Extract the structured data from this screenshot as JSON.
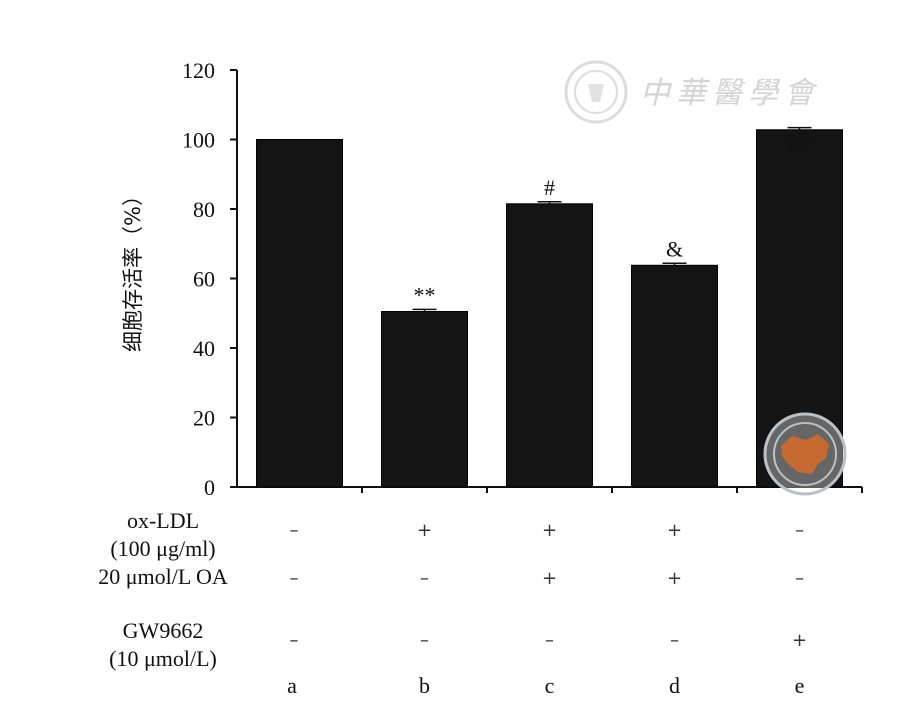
{
  "chart_data": {
    "type": "bar",
    "title": "",
    "xlabel": "",
    "ylabel": "细胞存活率（%）",
    "ylim": [
      0,
      120
    ],
    "yticks": [
      0,
      20,
      40,
      60,
      80,
      100,
      120
    ],
    "grid": false,
    "categories": [
      "a",
      "b",
      "c",
      "d",
      "e"
    ],
    "values": [
      100,
      50.5,
      81.5,
      63.8,
      102.8
    ],
    "errors": [
      0,
      0.6,
      0.6,
      0.6,
      0.6
    ],
    "annotations": [
      "",
      "**",
      "#",
      "&",
      "##"
    ],
    "bar_color": "#141414",
    "conditions": [
      {
        "label_lines": [
          "ox-LDL",
          "(100 μg/ml)"
        ],
        "values": [
          "–",
          "+",
          "+",
          "+",
          "–"
        ]
      },
      {
        "label_lines": [
          "20 μmol/L OA"
        ],
        "values": [
          "–",
          "–",
          "+",
          "+",
          "–"
        ]
      },
      {
        "label_lines": [
          "GW9662",
          "(10 μmol/L)"
        ],
        "values": [
          "–",
          "–",
          "–",
          "–",
          "+"
        ]
      }
    ]
  },
  "watermark": {
    "text": "中華醫學會",
    "seal_color": "#b9c2c9",
    "map_color": "#d06a2e"
  }
}
